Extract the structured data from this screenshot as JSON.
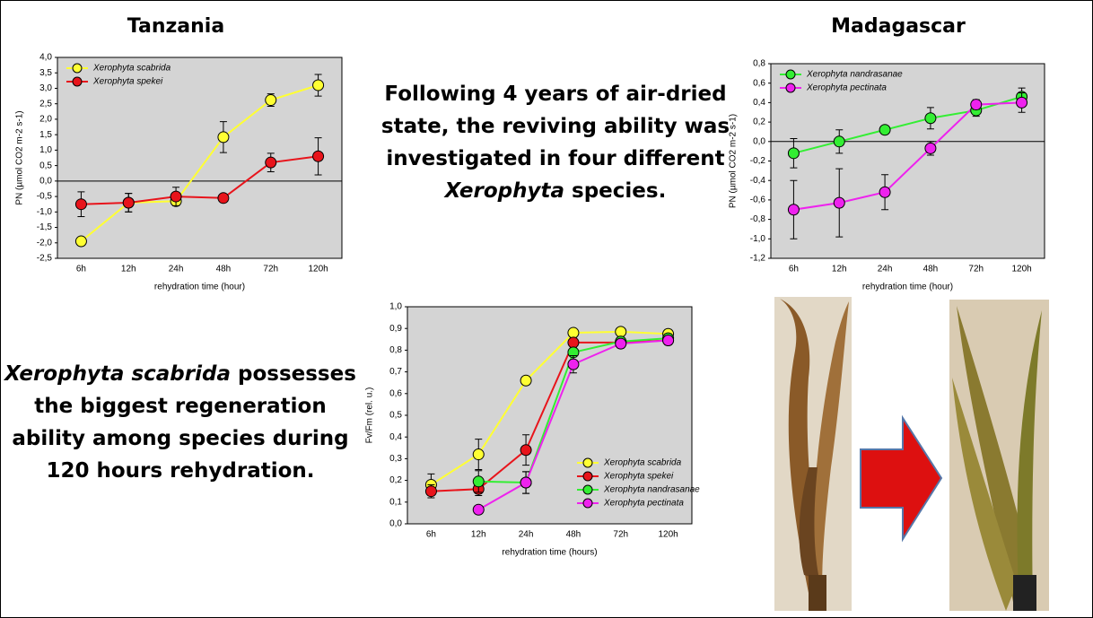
{
  "headings": [
    "Tanzania",
    "Madagascar"
  ],
  "texts": [
    {
      "parts": [
        "Following 4 years of air-dried state, the reviving ability  was investigated in four different ",
        "Xerophyta",
        " species."
      ]
    },
    {
      "parts": [
        "Xerophyta scabrida",
        " possesses the biggest regeneration ability among species during 120 hours rehydration."
      ]
    }
  ],
  "chart_data": [
    {
      "type": "line",
      "y_label": "PN (µmol CO2 m-2 s-1)",
      "x_label": "rehydration time (hour)",
      "categories": [
        "6h",
        "12h",
        "24h",
        "48h",
        "72h",
        "120h"
      ],
      "ylim": [
        -2.5,
        4.0
      ],
      "yticks": [
        {
          "value": -2.5,
          "label": "-2,5"
        },
        {
          "value": -2.0,
          "label": "-2,0"
        },
        {
          "value": -1.5,
          "label": "-1,5"
        },
        {
          "value": -1.0,
          "label": "-1,0"
        },
        {
          "value": -0.5,
          "label": "-0,5"
        },
        {
          "value": 0,
          "label": "0,0"
        },
        {
          "value": 0.5,
          "label": "0,5"
        },
        {
          "value": 1.0,
          "label": "1,0"
        },
        {
          "value": 1.5,
          "label": "1,5"
        },
        {
          "value": 2.0,
          "label": "2,0"
        },
        {
          "value": 2.5,
          "label": "2,5"
        },
        {
          "value": 3.0,
          "label": "3,0"
        },
        {
          "value": 3.5,
          "label": "3,5"
        },
        {
          "value": 4.0,
          "label": "4,0"
        }
      ],
      "grid": false,
      "zero_line": true,
      "legend": "upper left",
      "series": [
        {
          "name": "Xerophyta scabrida",
          "color": "#ffff33",
          "values": [
            -1.95,
            -0.7,
            -0.65,
            1.42,
            2.62,
            3.1
          ],
          "errors": [
            0.05,
            0.3,
            0.1,
            0.5,
            0.2,
            0.35
          ]
        },
        {
          "name": "Xerophyta spekei",
          "color": "#e8141b",
          "values": [
            -0.75,
            -0.7,
            -0.5,
            -0.55,
            0.6,
            0.8
          ],
          "errors": [
            0.4,
            0.3,
            0.3,
            0.1,
            0.3,
            0.6
          ]
        }
      ]
    },
    {
      "type": "line",
      "y_label": "PN (µmol CO2 m-2 s-1)",
      "x_label": "rehydration time (hour)",
      "categories": [
        "6h",
        "12h",
        "24h",
        "48h",
        "72h",
        "120h"
      ],
      "ylim": [
        -1.2,
        0.8
      ],
      "yticks": [
        {
          "value": -1.2,
          "label": "-1,2"
        },
        {
          "value": -1.0,
          "label": "-1,0"
        },
        {
          "value": -0.8,
          "label": "-0,8"
        },
        {
          "value": -0.6,
          "label": "-0,6"
        },
        {
          "value": -0.4,
          "label": "-0,4"
        },
        {
          "value": -0.2,
          "label": "-0,2"
        },
        {
          "value": 0,
          "label": "0,0"
        },
        {
          "value": 0.2,
          "label": "0,2"
        },
        {
          "value": 0.4,
          "label": "0,4"
        },
        {
          "value": 0.6,
          "label": "0,6"
        },
        {
          "value": 0.8,
          "label": "0,8"
        }
      ],
      "grid": false,
      "zero_line": true,
      "legend": "upper left",
      "series": [
        {
          "name": "Xerophyta nandrasanae",
          "color": "#33ee33",
          "values": [
            -0.12,
            0.0,
            0.12,
            0.24,
            0.32,
            0.46
          ],
          "errors": [
            0.15,
            0.12,
            0.03,
            0.11,
            0.06,
            0.09
          ]
        },
        {
          "name": "Xerophyta pectinata",
          "color": "#ee22ee",
          "values": [
            -0.7,
            -0.63,
            -0.52,
            -0.07,
            0.38,
            0.4
          ],
          "errors": [
            0.3,
            0.35,
            0.18,
            0.07,
            0.05,
            0.1
          ]
        }
      ]
    },
    {
      "type": "line",
      "y_label": "Fv/Fm (rel. u.)",
      "x_label": "rehydration time (hours)",
      "categories": [
        "6h",
        "12h",
        "24h",
        "48h",
        "72h",
        "120h"
      ],
      "ylim": [
        0,
        1.0
      ],
      "yticks": [
        {
          "value": 0,
          "label": "0,0"
        },
        {
          "value": 0.1,
          "label": "0,1"
        },
        {
          "value": 0.2,
          "label": "0,2"
        },
        {
          "value": 0.3,
          "label": "0,3"
        },
        {
          "value": 0.4,
          "label": "0,4"
        },
        {
          "value": 0.5,
          "label": "0,5"
        },
        {
          "value": 0.6,
          "label": "0,6"
        },
        {
          "value": 0.7,
          "label": "0,7"
        },
        {
          "value": 0.8,
          "label": "0,8"
        },
        {
          "value": 0.9,
          "label": "0,9"
        },
        {
          "value": 1.0,
          "label": "1,0"
        }
      ],
      "grid": false,
      "zero_line": false,
      "legend": "lower right",
      "series": [
        {
          "name": "Xerophyta scabrida",
          "color": "#ffff33",
          "values": [
            0.18,
            0.32,
            0.66,
            0.88,
            0.885,
            0.875
          ],
          "errors": [
            0.05,
            0.07,
            0.01,
            0.01,
            0.01,
            0.02
          ]
        },
        {
          "name": "Xerophyta spekei",
          "color": "#e8141b",
          "values": [
            0.15,
            0.16,
            0.34,
            0.835,
            0.835,
            0.845
          ],
          "errors": [
            0.03,
            0.03,
            0.07,
            0.02,
            0.02,
            0.02
          ]
        },
        {
          "name": "Xerophyta nandrasanae",
          "color": "#33ee33",
          "values": [
            null,
            0.195,
            0.19,
            0.79,
            0.84,
            0.855
          ],
          "errors": [
            null,
            0.05,
            0.05,
            0.02,
            0.02,
            0.02
          ]
        },
        {
          "name": "Xerophyta pectinata",
          "color": "#ee22ee",
          "values": [
            null,
            0.065,
            0.19,
            0.735,
            0.83,
            0.845
          ],
          "errors": [
            null,
            0.01,
            0.05,
            0.04,
            0.02,
            0.02
          ]
        }
      ]
    }
  ]
}
